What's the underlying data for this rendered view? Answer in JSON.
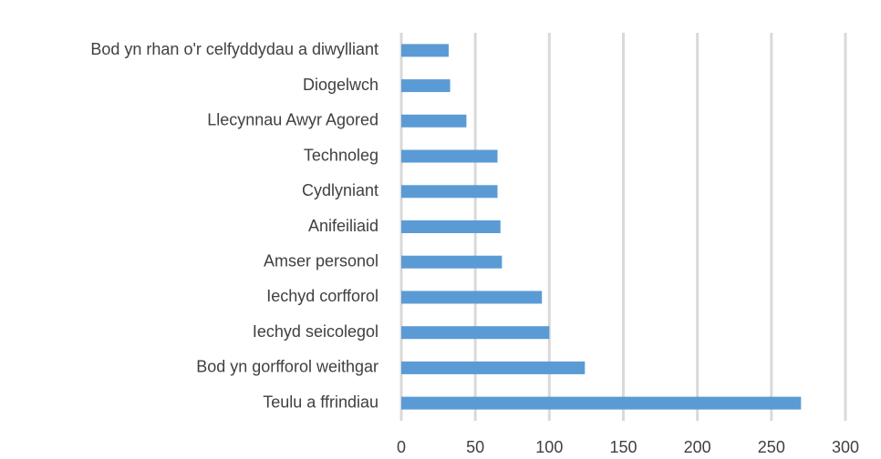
{
  "chart_data": {
    "type": "bar",
    "orientation": "horizontal",
    "categories": [
      "Bod yn rhan o'r celfyddydau a diwylliant",
      "Diogelwch",
      "Llecynnau Awyr Agored",
      "Technoleg",
      "Cydlyniant",
      "Anifeiliaid",
      "Amser personol",
      "Iechyd corfforol",
      "Iechyd seicolegol",
      "Bod yn gorfforol weithgar",
      "Teulu a ffrindiau"
    ],
    "values": [
      32,
      33,
      44,
      65,
      65,
      67,
      68,
      95,
      100,
      124,
      270
    ],
    "color": "#5b9bd5",
    "xlim": [
      0,
      300
    ],
    "xticks": [
      0,
      50,
      100,
      150,
      200,
      250,
      300
    ],
    "grid": true
  }
}
